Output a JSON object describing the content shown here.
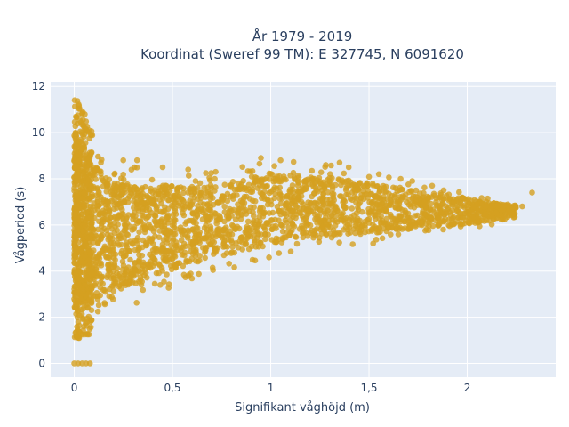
{
  "chart_data": {
    "type": "scatter",
    "title_line1": "År 1979 - 2019",
    "title_line2": "Koordinat (Sweref 99 TM): E 327745, N 6091620",
    "xlabel": "Signifikant våghöjd (m)",
    "ylabel": "Vågperiod (s)",
    "xlim": [
      -0.12,
      2.45
    ],
    "ylim": [
      -0.6,
      12.2
    ],
    "x_ticks": [
      0,
      0.5,
      1,
      1.5,
      2
    ],
    "x_tick_labels": [
      "0",
      "0,5",
      "1",
      "1,5",
      "2"
    ],
    "y_ticks": [
      0,
      2,
      4,
      6,
      8,
      10,
      12
    ],
    "y_tick_labels": [
      "0",
      "2",
      "4",
      "6",
      "8",
      "10",
      "12"
    ],
    "grid": true,
    "legend": "none",
    "marker_color": "#d4a021",
    "plot_background": "#e5ecf6",
    "envelope": {
      "x": [
        0.0,
        0.05,
        0.1,
        0.2,
        0.3,
        0.4,
        0.5,
        0.6,
        0.7,
        0.8,
        0.9,
        1.0,
        1.2,
        1.4,
        1.6,
        1.8,
        2.0,
        2.2,
        2.3
      ],
      "y_low": [
        1.0,
        1.1,
        1.4,
        2.0,
        2.5,
        3.0,
        3.3,
        3.6,
        3.9,
        4.1,
        4.3,
        4.5,
        4.8,
        5.0,
        5.3,
        5.6,
        5.8,
        6.1,
        6.4
      ],
      "y_high": [
        11.6,
        10.9,
        9.8,
        9.0,
        8.6,
        8.5,
        8.5,
        8.4,
        8.4,
        8.4,
        8.7,
        8.9,
        8.7,
        8.5,
        8.1,
        7.8,
        7.4,
        7.0,
        6.9
      ]
    },
    "zero_period_points": {
      "x": [
        0.0,
        0.02,
        0.04,
        0.06,
        0.08
      ],
      "y": [
        0,
        0,
        0,
        0,
        0
      ]
    },
    "outlier_points": {
      "x": [
        0.32,
        0.45,
        0.58,
        0.72,
        0.95,
        1.05,
        1.28,
        1.35,
        1.55,
        1.72,
        1.88,
        2.05,
        2.21,
        2.28,
        2.33
      ],
      "y": [
        8.8,
        8.5,
        8.4,
        8.3,
        8.9,
        8.8,
        8.6,
        8.7,
        8.2,
        7.9,
        7.5,
        6.9,
        6.6,
        6.8,
        7.4
      ]
    }
  }
}
